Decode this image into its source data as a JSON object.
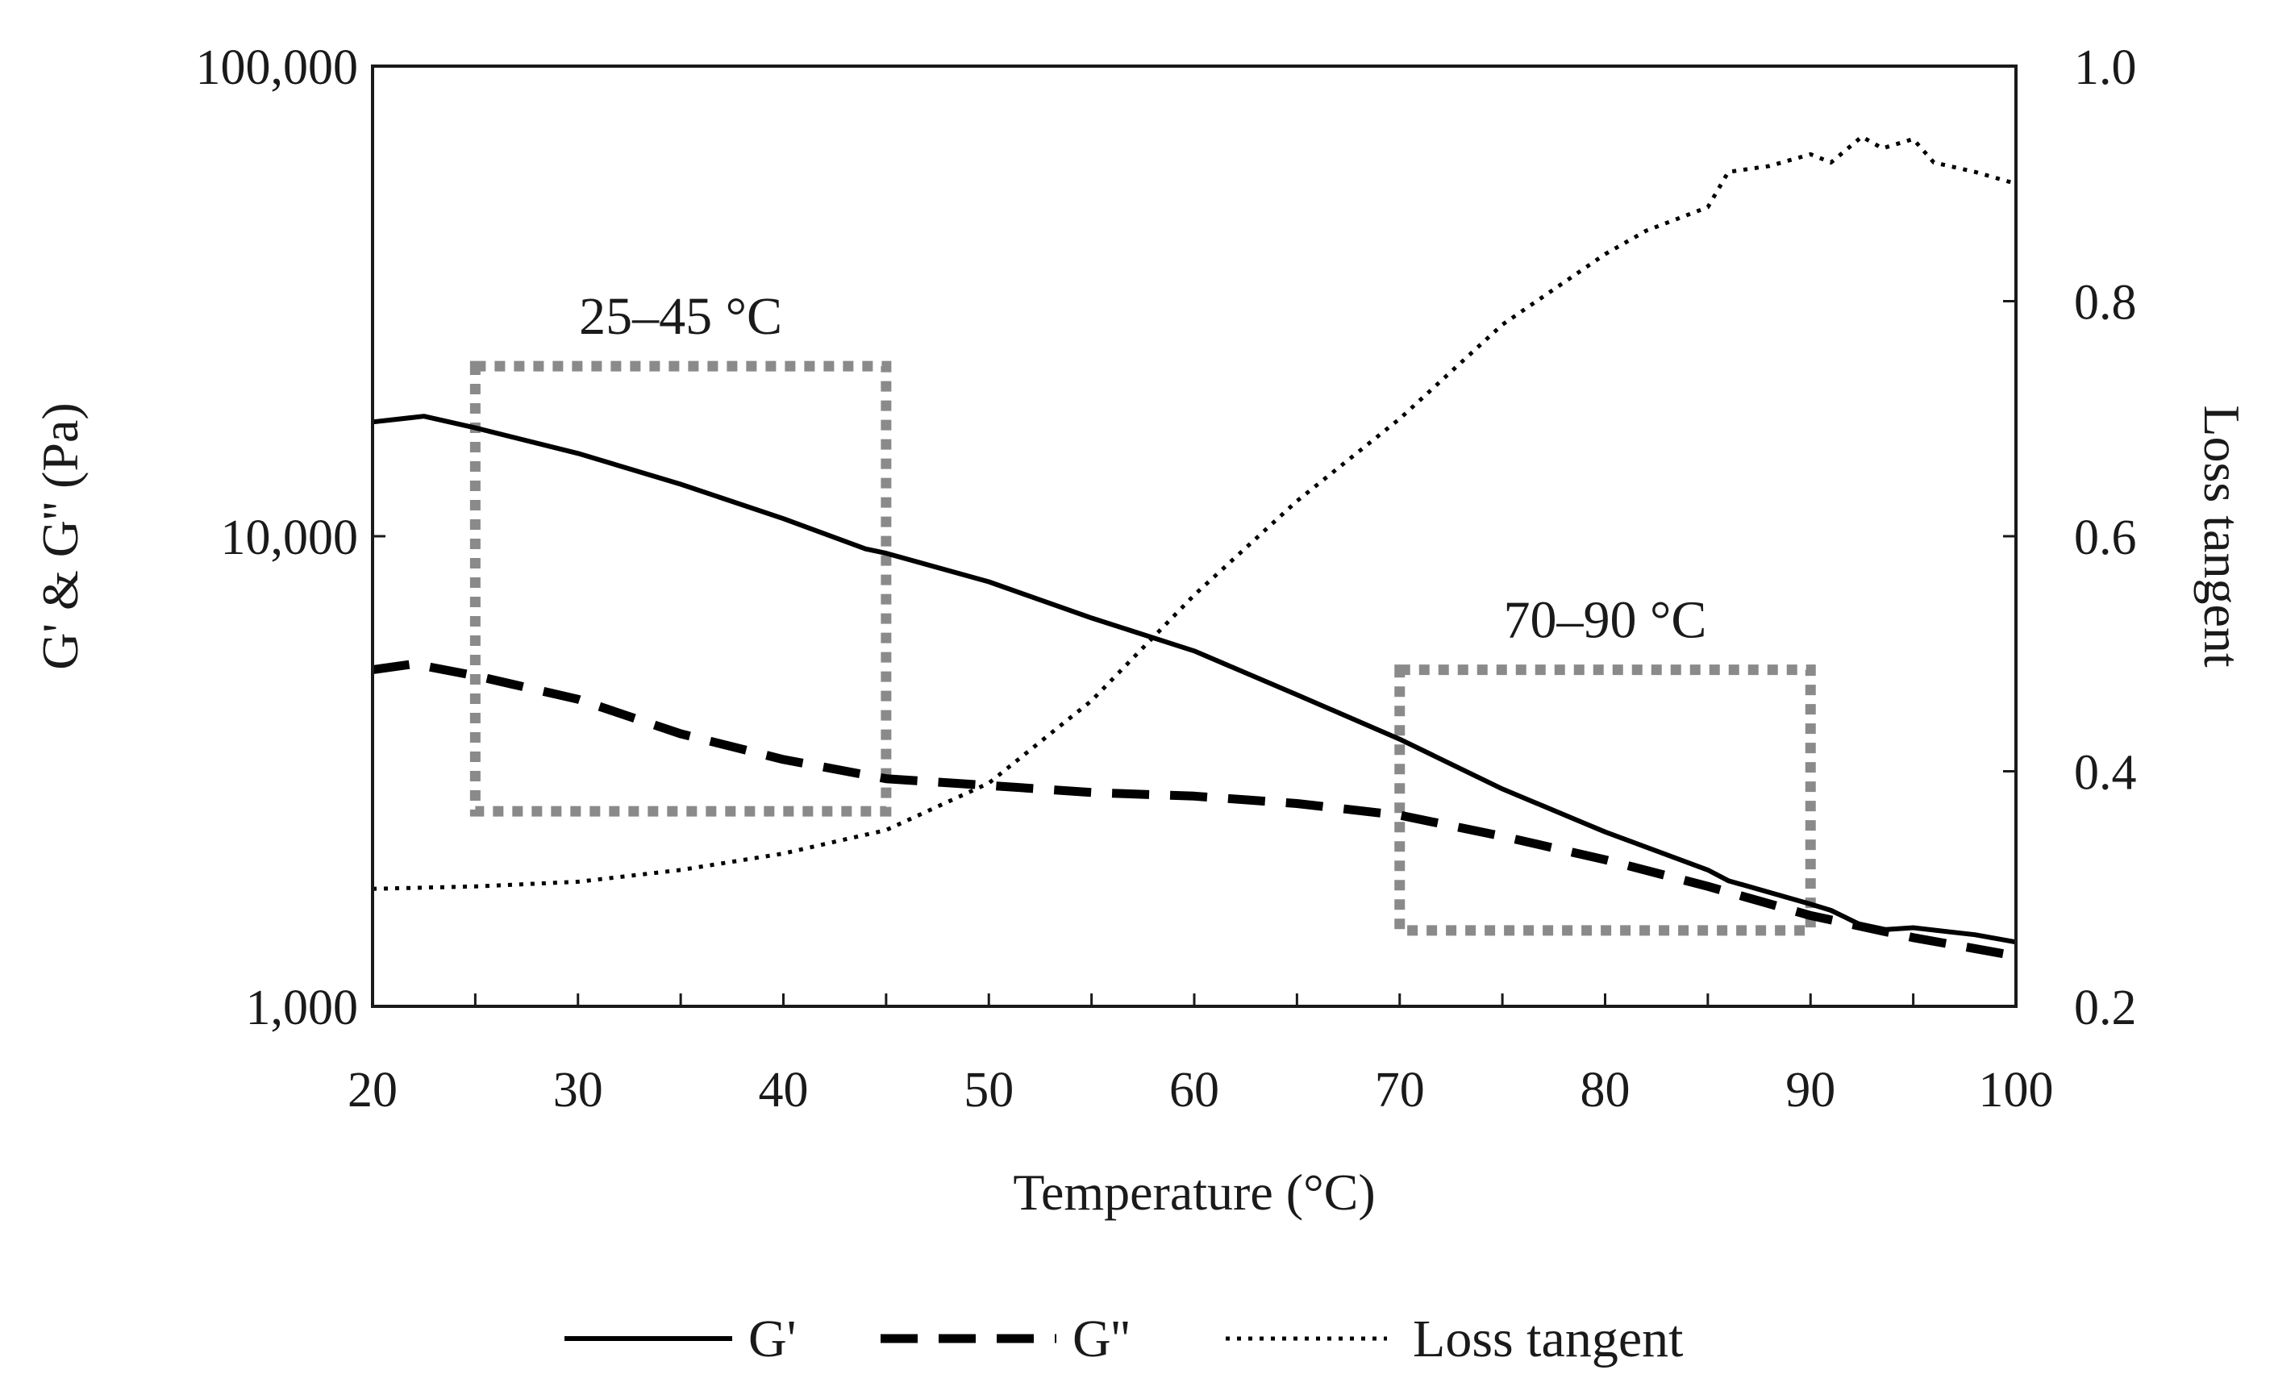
{
  "chart_data": {
    "type": "line",
    "title": "",
    "xlabel": "Temperature (°C)",
    "ylabel_left": "G' & G'' (Pa)",
    "ylabel_right": "Loss tangent",
    "xlim": [
      20,
      100
    ],
    "ylim_left": [
      1000,
      100000
    ],
    "ylim_right": [
      0.2,
      1.0
    ],
    "x_ticks": [
      20,
      30,
      40,
      50,
      60,
      70,
      80,
      90,
      100
    ],
    "x_tick_labels": [
      "20",
      "30",
      "40",
      "50",
      "60",
      "70",
      "80",
      "90",
      "100"
    ],
    "y_left_ticks": [
      1000,
      10000,
      100000
    ],
    "y_left_tick_labels": [
      "1,000",
      "10,000",
      "100,000"
    ],
    "y_right_ticks": [
      0.2,
      0.4,
      0.6,
      0.8,
      1.0
    ],
    "y_right_tick_labels": [
      "0.2",
      "0.4",
      "0.6",
      "0.8",
      "1.0"
    ],
    "grid": false,
    "legend_position": "bottom",
    "series": [
      {
        "name": "G'",
        "axis": "left",
        "style": "solid",
        "x": [
          20,
          22.5,
          25,
          30,
          35,
          40,
          44,
          45,
          50,
          55,
          60,
          65,
          70,
          75,
          80,
          85,
          86,
          90,
          91,
          93,
          95,
          98,
          100
        ],
        "y": [
          17500,
          18000,
          17000,
          15000,
          12900,
          10900,
          9400,
          9200,
          8000,
          6700,
          5700,
          4600,
          3700,
          2900,
          2350,
          1950,
          1850,
          1650,
          1600,
          1450,
          1470,
          1420,
          1370
        ]
      },
      {
        "name": "G''",
        "axis": "left",
        "style": "dashed",
        "x": [
          20,
          22,
          25,
          30,
          35,
          40,
          45,
          50,
          55,
          60,
          65,
          70,
          75,
          80,
          85,
          90,
          95,
          100
        ],
        "y": [
          5200,
          5350,
          5050,
          4500,
          3800,
          3350,
          3050,
          2950,
          2850,
          2800,
          2700,
          2550,
          2300,
          2050,
          1800,
          1560,
          1400,
          1280
        ]
      },
      {
        "name": "Loss tangent",
        "axis": "right",
        "style": "dotted",
        "x": [
          20,
          25,
          30,
          35,
          40,
          45,
          50,
          55,
          60,
          65,
          70,
          75,
          80,
          82,
          85,
          86,
          88,
          90,
          91,
          92.5,
          93.5,
          95,
          96,
          98,
          100
        ],
        "y": [
          0.3,
          0.302,
          0.306,
          0.316,
          0.33,
          0.35,
          0.39,
          0.46,
          0.55,
          0.63,
          0.7,
          0.78,
          0.84,
          0.86,
          0.88,
          0.91,
          0.915,
          0.925,
          0.918,
          0.94,
          0.93,
          0.938,
          0.918,
          0.91,
          0.9
        ]
      }
    ],
    "annotations": [
      {
        "label": "25–45 °C",
        "x_range": [
          25,
          45
        ],
        "y_range": [
          2600,
          23000
        ]
      },
      {
        "label": "70–90 °C",
        "x_range": [
          70,
          90
        ],
        "y_range": [
          1450,
          5200
        ]
      }
    ],
    "colors": {
      "axis": "#1a1a1a",
      "series": "#000000",
      "annotation_box": "#8a8a8a"
    }
  }
}
